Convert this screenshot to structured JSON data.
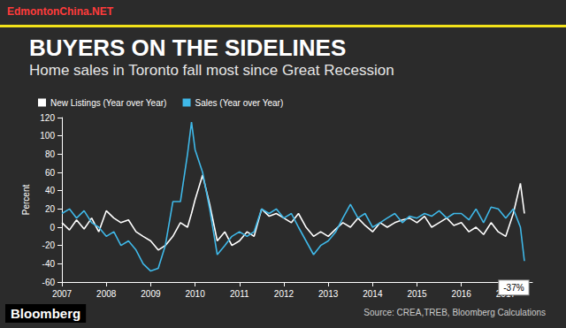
{
  "chart_data": {
    "type": "line",
    "watermark": "EdmontonChina.NET",
    "title": "BUYERS ON THE SIDELINES",
    "subtitle": "Home sales in Toronto fall most since Great Recession",
    "y_label": "Percent",
    "source": "Source: CREA,TREB, Bloomberg Calculations",
    "logo": "Bloomberg",
    "x": [
      2007,
      2007.17,
      2007.33,
      2007.5,
      2007.67,
      2007.83,
      2008,
      2008.17,
      2008.33,
      2008.5,
      2008.67,
      2008.83,
      2009,
      2009.17,
      2009.33,
      2009.5,
      2009.67,
      2009.83,
      2009.92,
      2010,
      2010.17,
      2010.33,
      2010.5,
      2010.67,
      2010.83,
      2011,
      2011.17,
      2011.33,
      2011.5,
      2011.67,
      2011.83,
      2012,
      2012.17,
      2012.33,
      2012.5,
      2012.67,
      2012.83,
      2013,
      2013.17,
      2013.33,
      2013.5,
      2013.67,
      2013.83,
      2014,
      2014.17,
      2014.33,
      2014.5,
      2014.67,
      2014.83,
      2015,
      2015.17,
      2015.33,
      2015.5,
      2015.67,
      2015.83,
      2016,
      2016.17,
      2016.33,
      2016.5,
      2016.67,
      2016.83,
      2017,
      2017.17,
      2017.33,
      2017.42
    ],
    "series": [
      {
        "name": "New Listings (Year over Year)",
        "color": "#ffffff",
        "values": [
          5,
          -3,
          8,
          -2,
          10,
          -5,
          18,
          10,
          5,
          8,
          -5,
          -10,
          -15,
          -25,
          -20,
          -10,
          5,
          0,
          15,
          30,
          57,
          25,
          -15,
          -5,
          -20,
          -15,
          -5,
          -10,
          20,
          12,
          15,
          10,
          5,
          15,
          0,
          -10,
          -5,
          -10,
          -2,
          5,
          0,
          10,
          2,
          -5,
          5,
          0,
          5,
          8,
          10,
          5,
          12,
          0,
          5,
          10,
          2,
          5,
          -5,
          0,
          -8,
          5,
          -5,
          -10,
          15,
          48,
          15
        ]
      },
      {
        "name": "Sales (Year over Year)",
        "color": "#3fb8e8",
        "values": [
          15,
          20,
          10,
          18,
          5,
          0,
          -10,
          -5,
          -20,
          -15,
          -25,
          -40,
          -48,
          -45,
          -20,
          28,
          28,
          80,
          115,
          85,
          60,
          20,
          -30,
          -20,
          -10,
          -5,
          -10,
          -5,
          20,
          15,
          20,
          10,
          15,
          0,
          -15,
          -30,
          -20,
          -15,
          -5,
          10,
          25,
          10,
          15,
          0,
          5,
          10,
          15,
          5,
          12,
          10,
          15,
          12,
          18,
          10,
          15,
          15,
          8,
          20,
          5,
          22,
          20,
          10,
          20,
          0,
          -37
        ]
      }
    ],
    "annotations": [
      {
        "text": "-37%",
        "x": 2017.42,
        "y": -37,
        "series": "Sales (Year over Year)"
      }
    ],
    "xlim": [
      2007,
      2017.6
    ],
    "xticks": [
      2007,
      2008,
      2009,
      2010,
      2011,
      2012,
      2013,
      2014,
      2015,
      2016,
      2017
    ],
    "ylim": [
      -60,
      120
    ],
    "yticks": [
      -60,
      -40,
      -20,
      0,
      20,
      40,
      60,
      80,
      100,
      120
    ],
    "grid": false,
    "legend": "top-left"
  }
}
